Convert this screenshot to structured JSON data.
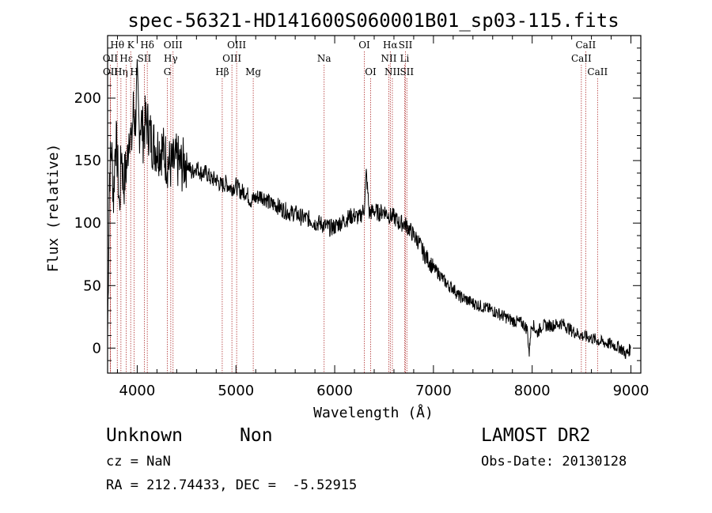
{
  "chart_data": {
    "type": "line",
    "title": "spec-56321-HD141600S060001B01_sp03-115.fits",
    "xlabel": "Wavelength (Å)",
    "ylabel": "Flux (relative)",
    "xlim": [
      3700,
      9100
    ],
    "ylim": [
      -20,
      250
    ],
    "x_ticks": [
      4000,
      5000,
      6000,
      7000,
      8000,
      9000
    ],
    "y_ticks": [
      0,
      50,
      100,
      150,
      200
    ],
    "grid": false,
    "series": [
      {
        "x": [
          3700,
          3720,
          3740,
          3760,
          3780,
          3800,
          3820,
          3840,
          3860,
          3880,
          3900,
          3920,
          3940,
          3960,
          3980,
          4000,
          4020,
          4040,
          4060,
          4080,
          4100,
          4150,
          4200,
          4250,
          4300,
          4350,
          4400,
          4450,
          4500,
          4550,
          4600,
          4650,
          4700,
          4750,
          4800,
          4850,
          4900,
          4950,
          5000,
          5050,
          5100,
          5150,
          5200,
          5250,
          5300,
          5350,
          5400,
          5450,
          5500,
          5550,
          5600,
          5650,
          5700,
          5750,
          5800,
          5850,
          5900,
          5950,
          6000,
          6050,
          6100,
          6150,
          6200,
          6250,
          6300,
          6320,
          6350,
          6400,
          6450,
          6500,
          6550,
          6600,
          6650,
          6700,
          6750,
          6800,
          6850,
          6900,
          6950,
          7000,
          7050,
          7100,
          7150,
          7200,
          7250,
          7300,
          7400,
          7500,
          7600,
          7700,
          7800,
          7900,
          7950,
          7970,
          7980,
          8000,
          8050,
          8100,
          8200,
          8300,
          8400,
          8500,
          8600,
          8700,
          8800,
          8900,
          8950,
          9000
        ],
        "y": [
          10,
          140,
          160,
          120,
          170,
          150,
          110,
          160,
          130,
          140,
          150,
          180,
          160,
          190,
          180,
          210,
          175,
          185,
          170,
          180,
          180,
          165,
          160,
          160,
          150,
          145,
          150,
          145,
          150,
          140,
          145,
          140,
          140,
          135,
          135,
          130,
          132,
          128,
          130,
          125,
          125,
          118,
          120,
          122,
          120,
          115,
          115,
          112,
          110,
          108,
          108,
          105,
          104,
          103,
          100,
          100,
          98,
          96,
          97,
          100,
          102,
          105,
          106,
          104,
          112,
          140,
          108,
          110,
          108,
          110,
          106,
          105,
          100,
          100,
          96,
          90,
          85,
          76,
          70,
          64,
          60,
          55,
          50,
          48,
          42,
          40,
          36,
          33,
          30,
          26,
          22,
          20,
          15,
          -5,
          10,
          20,
          12,
          18,
          18,
          20,
          14,
          10,
          8,
          5,
          3,
          0,
          -5,
          0
        ]
      }
    ],
    "spectral_lines": [
      {
        "label": "Hθ",
        "wavelength": 3798,
        "row": 1
      },
      {
        "label": "OII",
        "wavelength": 3727,
        "row": 2
      },
      {
        "label": "OII",
        "wavelength": 3729,
        "row": 3
      },
      {
        "label": "Hη",
        "wavelength": 3835,
        "row": 3
      },
      {
        "label": "Hε",
        "wavelength": 3889,
        "row": 2
      },
      {
        "label": "K",
        "wavelength": 3934,
        "row": 1
      },
      {
        "label": "H",
        "wavelength": 3969,
        "row": 3
      },
      {
        "label": "Hδ",
        "wavelength": 4102,
        "row": 1
      },
      {
        "label": "SII",
        "wavelength": 4072,
        "row": 2
      },
      {
        "label": "OIII",
        "wavelength": 4363,
        "row": 1
      },
      {
        "label": "Hγ",
        "wavelength": 4340,
        "row": 2
      },
      {
        "label": "G",
        "wavelength": 4305,
        "row": 3
      },
      {
        "label": "Hβ",
        "wavelength": 4861,
        "row": 3
      },
      {
        "label": "OIII",
        "wavelength": 4959,
        "row": 2
      },
      {
        "label": "OIII",
        "wavelength": 5007,
        "row": 1
      },
      {
        "label": "Mg",
        "wavelength": 5175,
        "row": 3
      },
      {
        "label": "Na",
        "wavelength": 5893,
        "row": 2
      },
      {
        "label": "OI",
        "wavelength": 6300,
        "row": 1
      },
      {
        "label": "OI",
        "wavelength": 6364,
        "row": 3
      },
      {
        "label": "Hα",
        "wavelength": 6563,
        "row": 1
      },
      {
        "label": "NII",
        "wavelength": 6548,
        "row": 2
      },
      {
        "label": "NII",
        "wavelength": 6584,
        "row": 3
      },
      {
        "label": "SII",
        "wavelength": 6717,
        "row": 1
      },
      {
        "label": "Li",
        "wavelength": 6708,
        "row": 2
      },
      {
        "label": "SII",
        "wavelength": 6731,
        "row": 3
      },
      {
        "label": "CaII",
        "wavelength": 8542,
        "row": 1
      },
      {
        "label": "CaII",
        "wavelength": 8498,
        "row": 2
      },
      {
        "label": "CaII",
        "wavelength": 8662,
        "row": 3
      }
    ]
  },
  "info": {
    "object_type": "Unknown",
    "subclass": "Non",
    "cz": "cz = NaN",
    "coords": "RA = 212.74433, DEC =  -5.52915",
    "survey": "LAMOST DR2",
    "obs_date": "Obs-Date: 20130128"
  },
  "colors": {
    "spectrum": "#000000",
    "line_markers": "#b03030",
    "axes": "#000000"
  }
}
